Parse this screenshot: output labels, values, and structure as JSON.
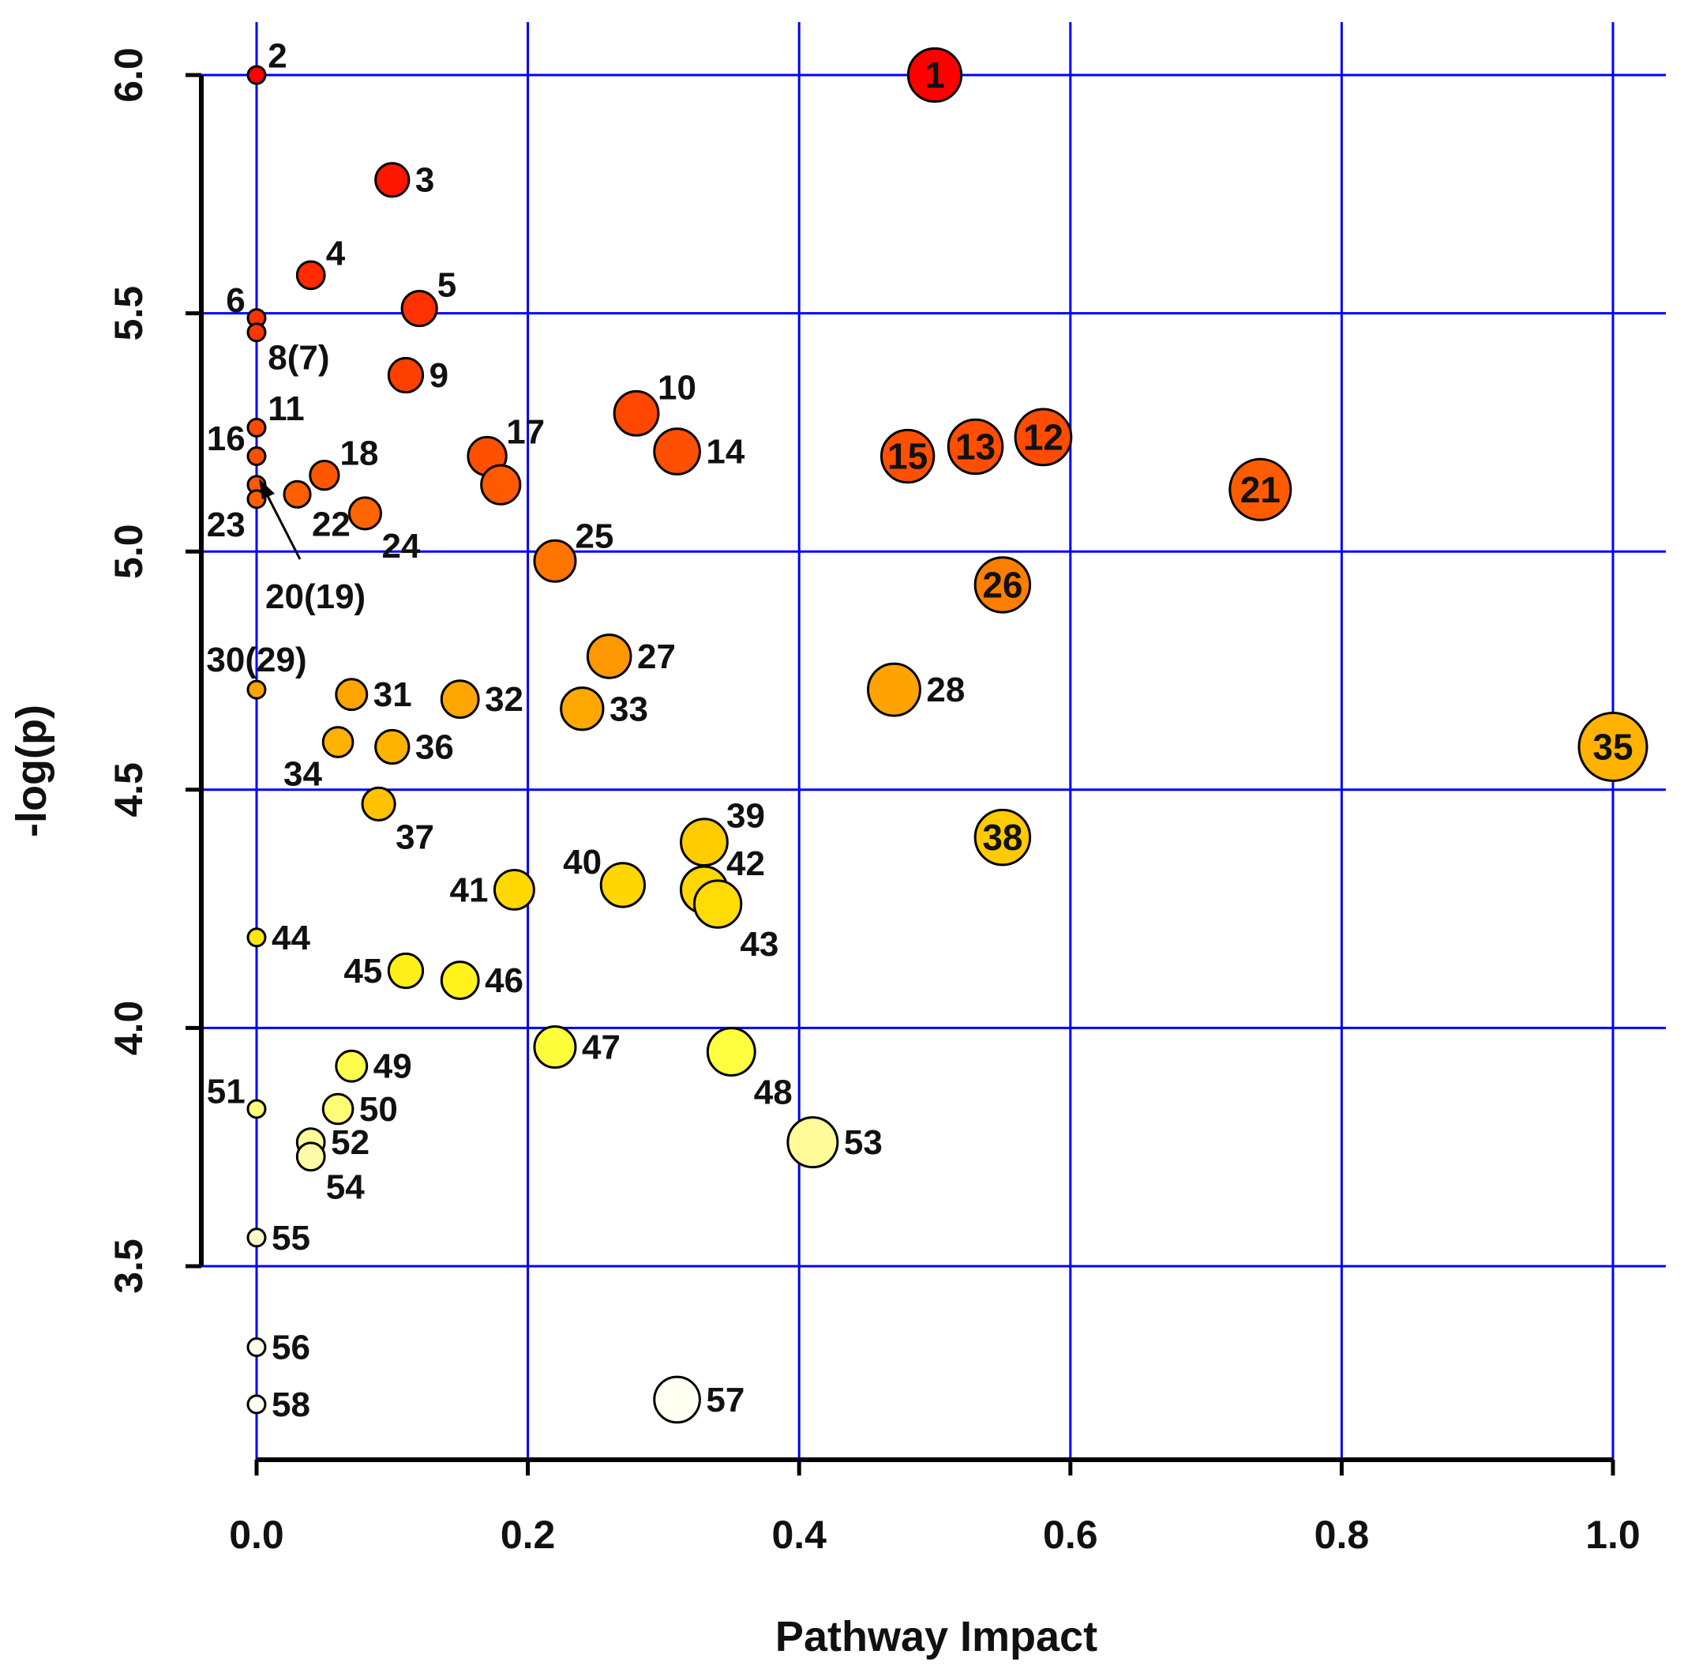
{
  "chart_data": {
    "type": "scatter",
    "title": "",
    "xlabel": "Pathway Impact",
    "ylabel": "-log(p)",
    "xlim": [
      0.0,
      1.0
    ],
    "ylim": [
      3.2,
      6.0
    ],
    "x_ticks": [
      "0.0",
      "0.2",
      "0.4",
      "0.6",
      "0.8",
      "1.0"
    ],
    "x_tick_values": [
      0.0,
      0.2,
      0.4,
      0.6,
      0.8,
      1.0
    ],
    "y_ticks": [
      "3.5",
      "4.0",
      "4.5",
      "5.0",
      "5.5",
      "6.0"
    ],
    "y_tick_values": [
      3.5,
      4.0,
      4.5,
      5.0,
      5.5,
      6.0
    ],
    "grid": true,
    "grid_color": "#0000ff",
    "points": [
      {
        "label": "1",
        "x": 0.5,
        "y": 6.0,
        "label_pos": "in"
      },
      {
        "label": "2",
        "x": 0.0,
        "y": 6.0,
        "label_pos": "ne"
      },
      {
        "label": "3",
        "x": 0.1,
        "y": 5.78,
        "label_pos": "e"
      },
      {
        "label": "4",
        "x": 0.04,
        "y": 5.58,
        "label_pos": "ne"
      },
      {
        "label": "5",
        "x": 0.12,
        "y": 5.51,
        "label_pos": "ne"
      },
      {
        "label": "6",
        "x": 0.0,
        "y": 5.49,
        "label_pos": "nw"
      },
      {
        "label": "8(7)",
        "x": 0.0,
        "y": 5.46,
        "label_pos": "se"
      },
      {
        "label": "9",
        "x": 0.11,
        "y": 5.37,
        "label_pos": "e"
      },
      {
        "label": "10",
        "x": 0.28,
        "y": 5.29,
        "label_pos": "ne"
      },
      {
        "label": "11",
        "x": 0.0,
        "y": 5.26,
        "label_pos": "ne"
      },
      {
        "label": "12",
        "x": 0.58,
        "y": 5.24,
        "label_pos": "in"
      },
      {
        "label": "13",
        "x": 0.53,
        "y": 5.22,
        "label_pos": "in"
      },
      {
        "label": "14",
        "x": 0.31,
        "y": 5.21,
        "label_pos": "e"
      },
      {
        "label": "15",
        "x": 0.48,
        "y": 5.2,
        "label_pos": "in"
      },
      {
        "label": "16",
        "x": 0.0,
        "y": 5.2,
        "label_pos": "nw"
      },
      {
        "label": "17",
        "x": 0.17,
        "y": 5.2,
        "label_pos": "ne"
      },
      {
        "label": "18",
        "x": 0.05,
        "y": 5.16,
        "label_pos": "ne"
      },
      {
        "label": "",
        "x": 0.0,
        "y": 5.14,
        "label_pos": "none"
      },
      {
        "label": "",
        "x": 0.18,
        "y": 5.14,
        "label_pos": "none"
      },
      {
        "label": "21",
        "x": 0.74,
        "y": 5.13,
        "label_pos": "in"
      },
      {
        "label": "22",
        "x": 0.03,
        "y": 5.12,
        "label_pos": "se"
      },
      {
        "label": "23",
        "x": 0.0,
        "y": 5.11,
        "label_pos": "sw"
      },
      {
        "label": "24",
        "x": 0.08,
        "y": 5.08,
        "label_pos": "se"
      },
      {
        "label": "25",
        "x": 0.22,
        "y": 4.98,
        "label_pos": "ne"
      },
      {
        "label": "26",
        "x": 0.55,
        "y": 4.93,
        "label_pos": "in"
      },
      {
        "label": "27",
        "x": 0.26,
        "y": 4.78,
        "label_pos": "e"
      },
      {
        "label": "28",
        "x": 0.47,
        "y": 4.71,
        "label_pos": "e"
      },
      {
        "label": "30(29)",
        "x": 0.0,
        "y": 4.71,
        "label_pos": "n"
      },
      {
        "label": "31",
        "x": 0.07,
        "y": 4.7,
        "label_pos": "e"
      },
      {
        "label": "32",
        "x": 0.15,
        "y": 4.69,
        "label_pos": "e"
      },
      {
        "label": "33",
        "x": 0.24,
        "y": 4.67,
        "label_pos": "e"
      },
      {
        "label": "34",
        "x": 0.06,
        "y": 4.6,
        "label_pos": "sw"
      },
      {
        "label": "35",
        "x": 1.0,
        "y": 4.59,
        "label_pos": "in"
      },
      {
        "label": "36",
        "x": 0.1,
        "y": 4.59,
        "label_pos": "e"
      },
      {
        "label": "37",
        "x": 0.09,
        "y": 4.47,
        "label_pos": "se"
      },
      {
        "label": "38",
        "x": 0.55,
        "y": 4.4,
        "label_pos": "in"
      },
      {
        "label": "39",
        "x": 0.33,
        "y": 4.39,
        "label_pos": "ne"
      },
      {
        "label": "40",
        "x": 0.27,
        "y": 4.3,
        "label_pos": "nw"
      },
      {
        "label": "41",
        "x": 0.19,
        "y": 4.29,
        "label_pos": "w"
      },
      {
        "label": "",
        "x": 0.33,
        "y": 4.29,
        "label_pos": "none"
      },
      {
        "label": "42",
        "x": 0.33,
        "y": 4.29,
        "label_pos": "ne"
      },
      {
        "label": "43",
        "x": 0.34,
        "y": 4.26,
        "label_pos": "se"
      },
      {
        "label": "44",
        "x": 0.0,
        "y": 4.19,
        "label_pos": "e"
      },
      {
        "label": "45",
        "x": 0.11,
        "y": 4.12,
        "label_pos": "w"
      },
      {
        "label": "46",
        "x": 0.15,
        "y": 4.1,
        "label_pos": "e"
      },
      {
        "label": "47",
        "x": 0.22,
        "y": 3.96,
        "label_pos": "e"
      },
      {
        "label": "48",
        "x": 0.35,
        "y": 3.95,
        "label_pos": "se"
      },
      {
        "label": "49",
        "x": 0.07,
        "y": 3.92,
        "label_pos": "e"
      },
      {
        "label": "50",
        "x": 0.06,
        "y": 3.83,
        "label_pos": "e"
      },
      {
        "label": "51",
        "x": 0.0,
        "y": 3.83,
        "label_pos": "nw"
      },
      {
        "label": "52",
        "x": 0.04,
        "y": 3.76,
        "label_pos": "e"
      },
      {
        "label": "53",
        "x": 0.41,
        "y": 3.76,
        "label_pos": "e"
      },
      {
        "label": "54",
        "x": 0.04,
        "y": 3.73,
        "label_pos": "se"
      },
      {
        "label": "55",
        "x": 0.0,
        "y": 3.56,
        "label_pos": "e"
      },
      {
        "label": "56",
        "x": 0.0,
        "y": 3.33,
        "label_pos": "e"
      },
      {
        "label": "57",
        "x": 0.31,
        "y": 3.22,
        "label_pos": "e"
      },
      {
        "label": "58",
        "x": 0.0,
        "y": 3.21,
        "label_pos": "e"
      }
    ],
    "arrow_annotation": {
      "label": "20(19)"
    }
  }
}
